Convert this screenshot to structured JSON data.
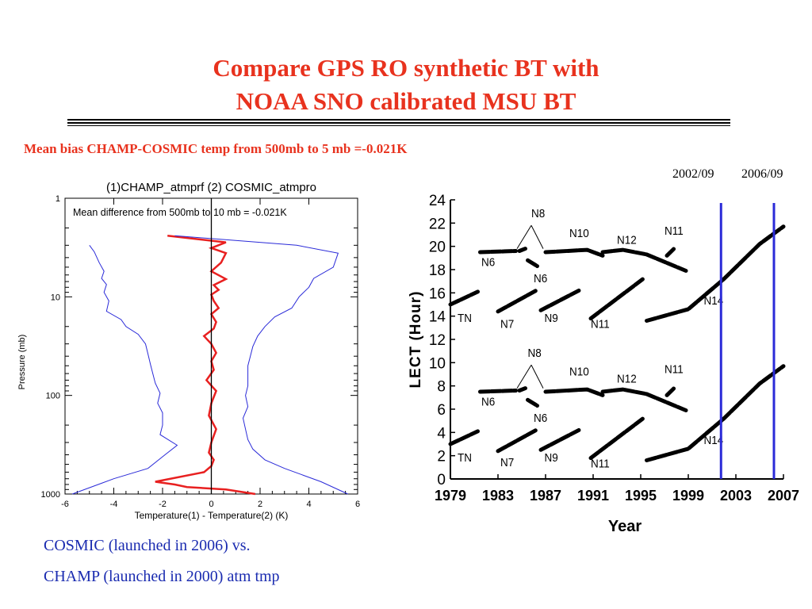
{
  "title_line1": "Compare GPS RO synthetic BT with",
  "title_line2": "NOAA SNO calibrated MSU BT",
  "subtitle": "Mean bias CHAMP-COSMIC temp from 500mb to 5 mb =-0.021K",
  "date_labels": [
    "2002/09",
    "2006/09"
  ],
  "caption_line1": "COSMIC (launched in 2006) vs.",
  "caption_line2": "CHAMP (launched in 2000) atm tmp",
  "colors": {
    "title": "#e8321e",
    "caption": "#1a2bb0",
    "blue": "#2a2ad8",
    "red": "#e82020"
  },
  "chart_data": [
    {
      "type": "line",
      "title": "(1)CHAMP_atmprf (2) COSMIC_atmpro",
      "annotation": "Mean difference from 500mb to 10 mb = -0.021K",
      "xlabel": "Temperature(1) - Temperature(2) (K)",
      "ylabel": "Pressure (mb)",
      "xlim": [
        -6,
        6
      ],
      "ylim": [
        1000,
        1
      ],
      "yscale": "log",
      "xticks": [
        "-6",
        "-4",
        "-2",
        "0",
        "2",
        "4",
        "6"
      ],
      "yticks": [
        "1",
        "10",
        "100",
        "1000"
      ],
      "series": [
        {
          "color": "#e82020",
          "x": [
            -1.8,
            0.6,
            0.0,
            0.6,
            0.4,
            0.0,
            0.6,
            0.1,
            0.3,
            0.0,
            0.1,
            0.3,
            0.0,
            0.2,
            0.1,
            -0.3,
            0.0,
            0.2,
            0.0,
            0.1,
            -0.2,
            0.2,
            0.0,
            -0.1,
            0.2,
            0.0,
            -0.1,
            0.1,
            0.0,
            -0.3,
            -2.3,
            -1.5,
            -1.0,
            0.6,
            1.8
          ],
          "y": [
            2.4,
            2.8,
            3.2,
            3.6,
            4.5,
            5.5,
            6.6,
            7.6,
            8.5,
            9.5,
            11,
            13,
            15,
            18,
            21,
            25,
            30,
            37,
            45,
            55,
            70,
            90,
            120,
            160,
            220,
            300,
            380,
            450,
            520,
            600,
            750,
            800,
            850,
            900,
            1000
          ]
        },
        {
          "color": "#2a2ad8",
          "x": [
            -5.0,
            -4.8,
            -4.6,
            -4.4,
            -4.5,
            -4.3,
            -4.4,
            -4.2,
            -4.3,
            -3.7,
            -3.5,
            -3.0,
            -2.7,
            -2.6,
            -2.5,
            -2.4,
            -2.3,
            -2.1,
            -2.2,
            -2.0,
            -2.0,
            -2.1,
            -1.4,
            -1.9,
            -2.6,
            -4.0,
            -5.7
          ],
          "y": [
            3.0,
            3.5,
            4.5,
            5.5,
            6.5,
            7.5,
            9,
            11,
            14,
            17,
            20,
            24,
            30,
            38,
            48,
            60,
            75,
            95,
            120,
            150,
            200,
            250,
            320,
            400,
            550,
            700,
            1000
          ]
        },
        {
          "color": "#2a2ad8",
          "x": [
            -1.5,
            3.5,
            5.2,
            5.0,
            4.2,
            4.0,
            3.6,
            3.3,
            2.6,
            2.2,
            1.9,
            1.7,
            1.6,
            1.5,
            1.5,
            1.5,
            1.4,
            1.5,
            1.3,
            1.4,
            1.5,
            1.7,
            2.2,
            3.0,
            4.5,
            5.6
          ],
          "y": [
            2.4,
            3.0,
            3.6,
            5.0,
            6.5,
            8.0,
            10,
            13,
            16,
            20,
            25,
            32,
            40,
            50,
            65,
            80,
            100,
            130,
            170,
            220,
            280,
            350,
            450,
            550,
            750,
            1000
          ]
        }
      ]
    },
    {
      "type": "line",
      "xlabel": "Year",
      "ylabel": "LECT (Hour)",
      "xlim": [
        1979,
        2007
      ],
      "ylim": [
        0,
        24
      ],
      "xticks": [
        "1979",
        "1983",
        "1987",
        "1991",
        "1995",
        "1999",
        "2003",
        "2007"
      ],
      "yticks": [
        "0",
        "2",
        "4",
        "6",
        "8",
        "10",
        "12",
        "14",
        "16",
        "18",
        "20",
        "22",
        "24"
      ],
      "vlines": [
        2001.75,
        2006.2
      ],
      "labels": [
        {
          "text": "N8",
          "x": 1985.8,
          "y": 22.5
        },
        {
          "text": "N10",
          "x": 1989.0,
          "y": 20.8
        },
        {
          "text": "N12",
          "x": 1993.0,
          "y": 20.2
        },
        {
          "text": "N11",
          "x": 1997.0,
          "y": 21.0
        },
        {
          "text": "N6",
          "x": 1981.6,
          "y": 18.3
        },
        {
          "text": "N6",
          "x": 1986.0,
          "y": 16.9
        },
        {
          "text": "N14",
          "x": 2000.3,
          "y": 15.0
        },
        {
          "text": "TN",
          "x": 1979.6,
          "y": 13.5
        },
        {
          "text": "N7",
          "x": 1983.2,
          "y": 13.0
        },
        {
          "text": "N9",
          "x": 1986.9,
          "y": 13.5
        },
        {
          "text": "N11",
          "x": 1990.8,
          "y": 13.0
        },
        {
          "text": "N8",
          "x": 1985.5,
          "y": 10.5
        },
        {
          "text": "N10",
          "x": 1989.0,
          "y": 8.9
        },
        {
          "text": "N12",
          "x": 1993.0,
          "y": 8.3
        },
        {
          "text": "N11",
          "x": 1997.0,
          "y": 9.1
        },
        {
          "text": "N6",
          "x": 1981.6,
          "y": 6.3
        },
        {
          "text": "N6",
          "x": 1986.0,
          "y": 4.9
        },
        {
          "text": "N14",
          "x": 2000.3,
          "y": 3.0
        },
        {
          "text": "TN",
          "x": 1979.6,
          "y": 1.5
        },
        {
          "text": "N7",
          "x": 1983.2,
          "y": 1.1
        },
        {
          "text": "N9",
          "x": 1986.9,
          "y": 1.5
        },
        {
          "text": "N11",
          "x": 1990.8,
          "y": 1.0
        }
      ],
      "series": [
        {
          "x": [
            1979.0,
            1981.3
          ],
          "y": [
            15.0,
            16.1
          ]
        },
        {
          "x": [
            1981.5,
            1984.5
          ],
          "y": [
            19.5,
            19.6
          ]
        },
        {
          "x": [
            1984.8,
            1985.3
          ],
          "y": [
            19.6,
            19.8
          ]
        },
        {
          "x": [
            1985.5,
            1986.3
          ],
          "y": [
            18.8,
            18.3
          ]
        },
        {
          "x": [
            1983.0,
            1986.2
          ],
          "y": [
            14.4,
            16.2
          ]
        },
        {
          "x": [
            1986.6,
            1989.8
          ],
          "y": [
            14.5,
            16.2
          ]
        },
        {
          "x": [
            1987.0,
            1990.5,
            1991.8
          ],
          "y": [
            19.5,
            19.7,
            19.2
          ]
        },
        {
          "x": [
            1991.8,
            1993.5,
            1995.5,
            1998.8
          ],
          "y": [
            19.5,
            19.7,
            19.3,
            17.9
          ]
        },
        {
          "x": [
            1990.8,
            1995.2
          ],
          "y": [
            13.8,
            17.2
          ]
        },
        {
          "x": [
            1997.2,
            1997.8
          ],
          "y": [
            19.2,
            19.8
          ]
        },
        {
          "x": [
            1995.5,
            1999.0,
            2002.0,
            2005.0,
            2007.0
          ],
          "y": [
            13.6,
            14.6,
            17.2,
            20.2,
            21.7
          ]
        },
        {
          "x": [
            1979.0,
            1981.3
          ],
          "y": [
            3.0,
            4.1
          ]
        },
        {
          "x": [
            1981.5,
            1984.5
          ],
          "y": [
            7.5,
            7.6
          ]
        },
        {
          "x": [
            1984.8,
            1985.3
          ],
          "y": [
            7.6,
            7.8
          ]
        },
        {
          "x": [
            1985.5,
            1986.3
          ],
          "y": [
            6.8,
            6.3
          ]
        },
        {
          "x": [
            1983.0,
            1986.2
          ],
          "y": [
            2.4,
            4.2
          ]
        },
        {
          "x": [
            1986.6,
            1989.8
          ],
          "y": [
            2.5,
            4.2
          ]
        },
        {
          "x": [
            1987.0,
            1990.5,
            1991.8
          ],
          "y": [
            7.5,
            7.7,
            7.2
          ]
        },
        {
          "x": [
            1991.8,
            1993.5,
            1995.5,
            1998.8
          ],
          "y": [
            7.5,
            7.7,
            7.3,
            5.9
          ]
        },
        {
          "x": [
            1990.8,
            1995.2
          ],
          "y": [
            1.8,
            5.2
          ]
        },
        {
          "x": [
            1997.2,
            1997.8
          ],
          "y": [
            7.2,
            7.8
          ]
        },
        {
          "x": [
            1995.5,
            1999.0,
            2002.0,
            2005.0,
            2007.0
          ],
          "y": [
            1.6,
            2.6,
            5.2,
            8.2,
            9.7
          ]
        }
      ]
    }
  ]
}
